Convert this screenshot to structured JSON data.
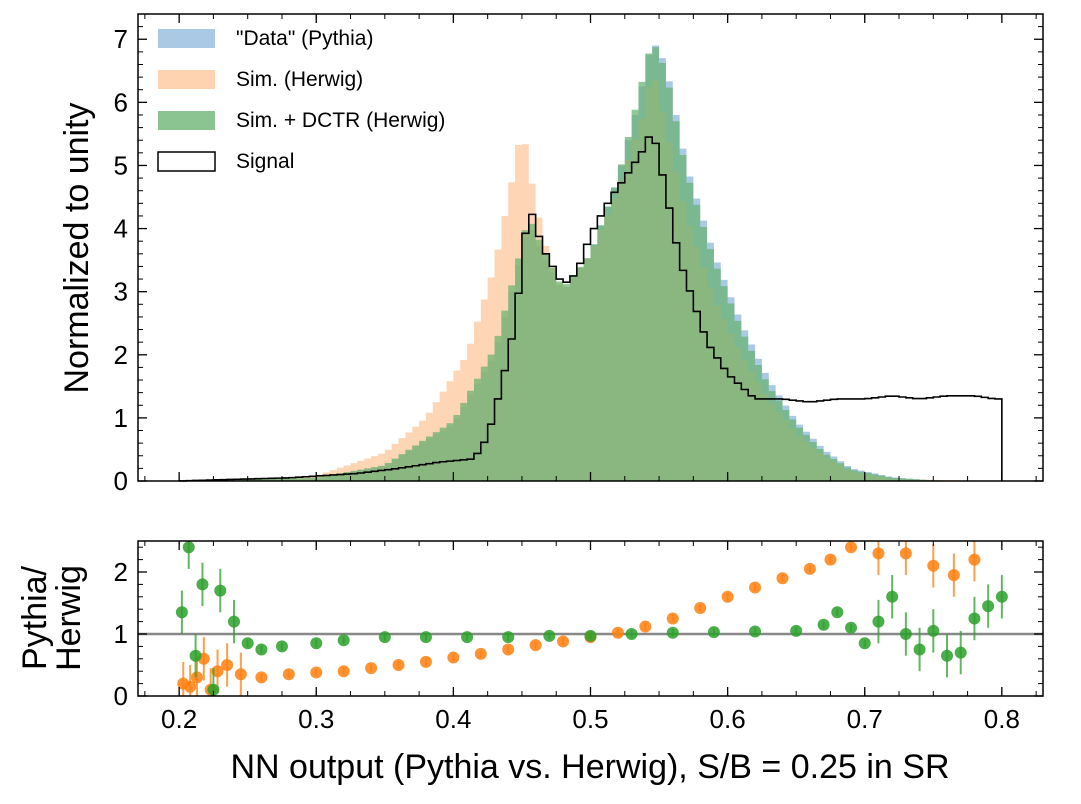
{
  "chart_data": [
    {
      "type": "area",
      "panel": "main",
      "ylabel": "Normalized to unity",
      "xlim": [
        0.17,
        0.83
      ],
      "ylim": [
        0,
        7.4
      ],
      "x_ticks": [
        0.2,
        0.3,
        0.4,
        0.5,
        0.6,
        0.7,
        0.8
      ],
      "y_ticks": [
        0,
        1,
        2,
        3,
        4,
        5,
        6,
        7
      ],
      "y_tick_labels": [
        "0",
        "1",
        "2",
        "3",
        "4",
        "5",
        "6",
        "7"
      ],
      "grid": false,
      "legend_position": "top-left",
      "histogram_range": [
        0.2,
        0.8
      ],
      "bin_width": 0.005,
      "series": [
        {
          "name": "\"Data\" (Pythia)",
          "style": "filled",
          "color": "#9bc0e0",
          "points": [
            [
              0.2,
              0
            ],
            [
              0.3,
              0.05
            ],
            [
              0.35,
              0.25
            ],
            [
              0.4,
              0.9
            ],
            [
              0.43,
              2.0
            ],
            [
              0.445,
              3.2
            ],
            [
              0.455,
              4.1
            ],
            [
              0.465,
              3.6
            ],
            [
              0.48,
              3.0
            ],
            [
              0.5,
              3.6
            ],
            [
              0.52,
              4.8
            ],
            [
              0.535,
              6.0
            ],
            [
              0.545,
              7.0
            ],
            [
              0.555,
              6.6
            ],
            [
              0.57,
              5.0
            ],
            [
              0.59,
              3.6
            ],
            [
              0.61,
              2.5
            ],
            [
              0.63,
              1.6
            ],
            [
              0.65,
              0.95
            ],
            [
              0.67,
              0.5
            ],
            [
              0.69,
              0.2
            ],
            [
              0.72,
              0.06
            ],
            [
              0.75,
              0.01
            ],
            [
              0.8,
              0
            ]
          ]
        },
        {
          "name": "Sim. (Herwig)",
          "style": "filled",
          "color": "#fdc596",
          "points": [
            [
              0.2,
              0
            ],
            [
              0.24,
              0.02
            ],
            [
              0.3,
              0.08
            ],
            [
              0.35,
              0.45
            ],
            [
              0.38,
              1.0
            ],
            [
              0.41,
              2.0
            ],
            [
              0.43,
              3.4
            ],
            [
              0.445,
              5.0
            ],
            [
              0.45,
              5.65
            ],
            [
              0.46,
              4.4
            ],
            [
              0.47,
              3.5
            ],
            [
              0.48,
              3.0
            ],
            [
              0.5,
              3.6
            ],
            [
              0.52,
              4.6
            ],
            [
              0.54,
              5.9
            ],
            [
              0.545,
              6.6
            ],
            [
              0.555,
              5.6
            ],
            [
              0.57,
              4.2
            ],
            [
              0.59,
              2.9
            ],
            [
              0.61,
              2.0
            ],
            [
              0.63,
              1.3
            ],
            [
              0.65,
              0.75
            ],
            [
              0.67,
              0.4
            ],
            [
              0.69,
              0.15
            ],
            [
              0.72,
              0.03
            ],
            [
              0.8,
              0
            ]
          ]
        },
        {
          "name": "Sim. + DCTR (Herwig)",
          "style": "filled",
          "color": "#64b06c",
          "points": [
            [
              0.2,
              0
            ],
            [
              0.3,
              0.05
            ],
            [
              0.35,
              0.25
            ],
            [
              0.4,
              0.95
            ],
            [
              0.43,
              2.1
            ],
            [
              0.445,
              3.3
            ],
            [
              0.455,
              4.2
            ],
            [
              0.465,
              3.7
            ],
            [
              0.48,
              3.05
            ],
            [
              0.5,
              3.6
            ],
            [
              0.52,
              4.8
            ],
            [
              0.535,
              6.1
            ],
            [
              0.545,
              7.0
            ],
            [
              0.555,
              6.5
            ],
            [
              0.57,
              4.9
            ],
            [
              0.59,
              3.5
            ],
            [
              0.61,
              2.4
            ],
            [
              0.63,
              1.5
            ],
            [
              0.65,
              0.9
            ],
            [
              0.67,
              0.45
            ],
            [
              0.69,
              0.18
            ],
            [
              0.72,
              0.05
            ],
            [
              0.75,
              0.01
            ],
            [
              0.8,
              0
            ]
          ]
        },
        {
          "name": "Signal",
          "style": "step",
          "color": "#000000",
          "points": [
            [
              0.2,
              0
            ],
            [
              0.23,
              0.02
            ],
            [
              0.28,
              0.05
            ],
            [
              0.33,
              0.12
            ],
            [
              0.36,
              0.2
            ],
            [
              0.39,
              0.3
            ],
            [
              0.415,
              0.35
            ],
            [
              0.425,
              0.7
            ],
            [
              0.435,
              1.5
            ],
            [
              0.445,
              2.5
            ],
            [
              0.455,
              4.4
            ],
            [
              0.465,
              3.7
            ],
            [
              0.48,
              3.1
            ],
            [
              0.49,
              3.3
            ],
            [
              0.5,
              3.9
            ],
            [
              0.515,
              4.5
            ],
            [
              0.525,
              4.8
            ],
            [
              0.54,
              5.3
            ],
            [
              0.545,
              5.6
            ],
            [
              0.555,
              4.6
            ],
            [
              0.565,
              3.5
            ],
            [
              0.585,
              2.2
            ],
            [
              0.6,
              1.7
            ],
            [
              0.62,
              1.3
            ],
            [
              0.64,
              1.3
            ],
            [
              0.66,
              1.25
            ],
            [
              0.68,
              1.3
            ],
            [
              0.7,
              1.3
            ],
            [
              0.72,
              1.35
            ],
            [
              0.74,
              1.3
            ],
            [
              0.76,
              1.35
            ],
            [
              0.78,
              1.35
            ],
            [
              0.795,
              1.3
            ],
            [
              0.8,
              1.3
            ]
          ]
        }
      ]
    },
    {
      "type": "scatter",
      "panel": "ratio",
      "xlabel": "NN output (Pythia vs. Herwig), S/B = 0.25 in SR",
      "ylabel": "Pythia/\nHerwig",
      "xlim": [
        0.17,
        0.83
      ],
      "ylim": [
        0,
        2.5
      ],
      "x_ticks": [
        0.2,
        0.3,
        0.4,
        0.5,
        0.6,
        0.7,
        0.8
      ],
      "x_tick_labels": [
        "0.2",
        "0.3",
        "0.4",
        "0.5",
        "0.6",
        "0.7",
        "0.8"
      ],
      "y_ticks": [
        0,
        1,
        2
      ],
      "y_tick_labels": [
        "0",
        "1",
        "2"
      ],
      "reference_line": 1,
      "grid": false,
      "series": [
        {
          "color": "#ff7f0e",
          "points": [
            [
              0.203,
              0.2
            ],
            [
              0.208,
              0.15
            ],
            [
              0.213,
              0.3
            ],
            [
              0.218,
              0.6
            ],
            [
              0.223,
              0.1
            ],
            [
              0.228,
              0.4
            ],
            [
              0.235,
              0.5
            ],
            [
              0.245,
              0.35
            ],
            [
              0.26,
              0.3
            ],
            [
              0.28,
              0.35
            ],
            [
              0.3,
              0.38
            ],
            [
              0.32,
              0.4
            ],
            [
              0.34,
              0.45
            ],
            [
              0.36,
              0.5
            ],
            [
              0.38,
              0.55
            ],
            [
              0.4,
              0.62
            ],
            [
              0.42,
              0.68
            ],
            [
              0.44,
              0.75
            ],
            [
              0.46,
              0.82
            ],
            [
              0.48,
              0.88
            ],
            [
              0.5,
              0.95
            ],
            [
              0.52,
              1.02
            ],
            [
              0.54,
              1.12
            ],
            [
              0.56,
              1.25
            ],
            [
              0.58,
              1.42
            ],
            [
              0.6,
              1.6
            ],
            [
              0.62,
              1.75
            ],
            [
              0.64,
              1.9
            ],
            [
              0.66,
              2.05
            ],
            [
              0.675,
              2.2
            ],
            [
              0.69,
              2.4
            ],
            [
              0.71,
              2.3
            ],
            [
              0.73,
              2.3
            ],
            [
              0.75,
              2.1
            ],
            [
              0.765,
              1.95
            ],
            [
              0.78,
              2.2
            ]
          ]
        },
        {
          "color": "#2ca02c",
          "points": [
            [
              0.202,
              1.35
            ],
            [
              0.207,
              2.4
            ],
            [
              0.212,
              0.65
            ],
            [
              0.217,
              1.8
            ],
            [
              0.225,
              0.1
            ],
            [
              0.23,
              1.7
            ],
            [
              0.24,
              1.2
            ],
            [
              0.25,
              0.85
            ],
            [
              0.26,
              0.75
            ],
            [
              0.275,
              0.8
            ],
            [
              0.3,
              0.85
            ],
            [
              0.32,
              0.9
            ],
            [
              0.35,
              0.95
            ],
            [
              0.38,
              0.95
            ],
            [
              0.41,
              0.95
            ],
            [
              0.44,
              0.95
            ],
            [
              0.47,
              0.97
            ],
            [
              0.5,
              0.97
            ],
            [
              0.53,
              1.0
            ],
            [
              0.56,
              1.02
            ],
            [
              0.59,
              1.03
            ],
            [
              0.62,
              1.04
            ],
            [
              0.65,
              1.05
            ],
            [
              0.67,
              1.15
            ],
            [
              0.68,
              1.35
            ],
            [
              0.69,
              1.1
            ],
            [
              0.7,
              0.85
            ],
            [
              0.71,
              1.2
            ],
            [
              0.72,
              1.6
            ],
            [
              0.73,
              1.0
            ],
            [
              0.74,
              0.75
            ],
            [
              0.75,
              1.05
            ],
            [
              0.76,
              0.65
            ],
            [
              0.77,
              0.7
            ],
            [
              0.78,
              1.25
            ],
            [
              0.79,
              1.45
            ],
            [
              0.8,
              1.6
            ]
          ]
        }
      ]
    }
  ]
}
